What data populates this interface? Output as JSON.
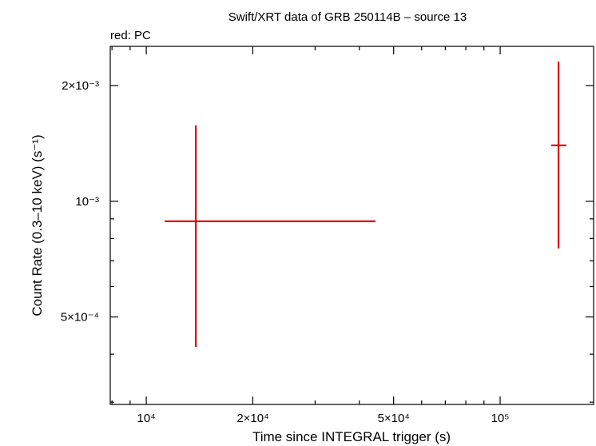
{
  "chart_data": {
    "type": "scatter",
    "title": "Swift/XRT data of GRB 250114B – source 13",
    "subtitle": "red: PC",
    "x_label": "Time since INTEGRAL trigger (s)",
    "y_label": "Count Rate (0.3–10 keV) (s⁻¹)",
    "xscale": "log",
    "yscale": "log",
    "xlim": [
      7910,
      183700
    ],
    "ylim": [
      0.000296,
      0.00253
    ],
    "xticks": [
      {
        "value": 10000,
        "label": "10⁴"
      },
      {
        "value": 20000,
        "label": "2×10⁴"
      },
      {
        "value": 50000,
        "label": "5×10⁴"
      },
      {
        "value": 100000,
        "label": "10⁵"
      }
    ],
    "xminorticks": [
      8000,
      9000,
      30000,
      40000,
      60000,
      70000,
      80000,
      90000
    ],
    "yticks": [
      {
        "value": 0.0005,
        "label": "5×10⁻⁴"
      },
      {
        "value": 0.001,
        "label": "10⁻³"
      },
      {
        "value": 0.002,
        "label": "2×10⁻³"
      }
    ],
    "yminorticks": [
      0.0003,
      0.0004,
      0.0006,
      0.0007,
      0.0008,
      0.0009
    ],
    "series": [
      {
        "name": "PC",
        "color": "#e00000",
        "x": [
          13800,
          146200
        ],
        "x_low": [
          11270,
          139500
        ],
        "x_high": [
          44450,
          153900
        ],
        "values": [
          0.000887,
          0.001398
        ],
        "y_low": [
          0.000418,
          0.000754
        ],
        "y_high": [
          0.001576,
          0.00231
        ]
      }
    ]
  }
}
